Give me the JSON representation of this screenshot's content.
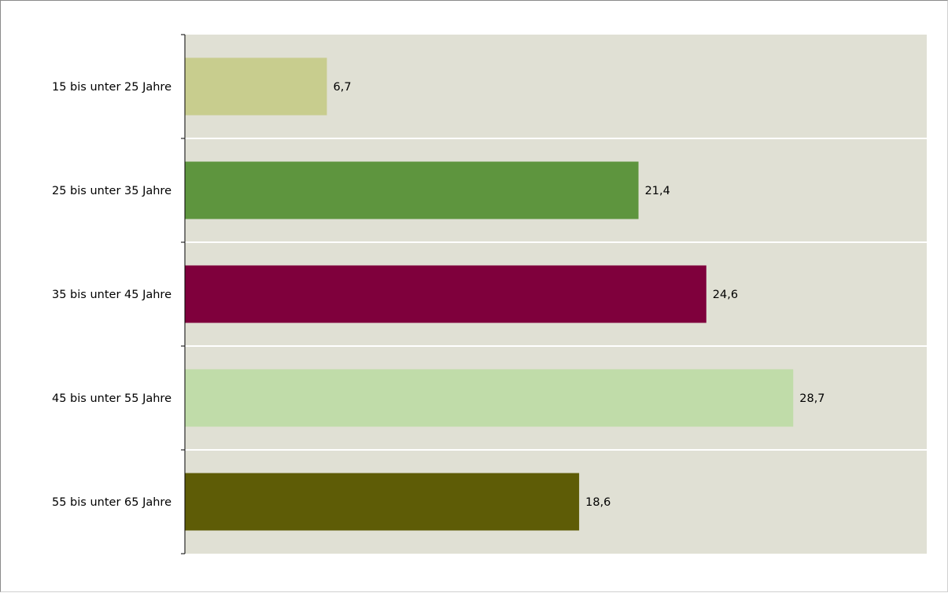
{
  "chart_data": {
    "type": "bar",
    "orientation": "horizontal",
    "categories": [
      "15 bis unter 25 Jahre",
      "25 bis unter 35 Jahre",
      "35 bis unter 45 Jahre",
      "45 bis unter 55 Jahre",
      "55 bis unter 65 Jahre"
    ],
    "values": [
      6.7,
      21.4,
      24.6,
      28.7,
      18.6
    ],
    "value_labels": [
      "6,7",
      "21,4",
      "24,6",
      "28,7",
      "18,6"
    ],
    "bar_colors": [
      "#c8cd8e",
      "#5e953e",
      "#7f003c",
      "#c0dca9",
      "#5e5c06"
    ],
    "plot_background": "#e0e0d4",
    "separator_color": "#ffffff",
    "axis_color": "#000000",
    "xlim": [
      0,
      35
    ],
    "xaxis_visible": false,
    "grid": false,
    "legend": "none"
  }
}
